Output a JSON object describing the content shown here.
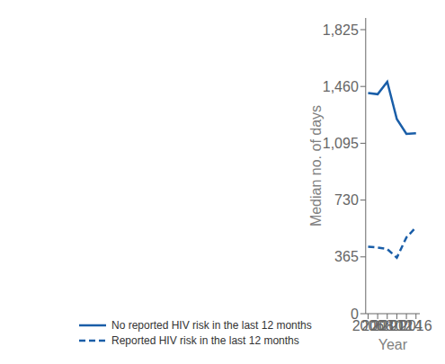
{
  "chart_data": {
    "type": "line",
    "x": [
      2006,
      2008,
      2010,
      2012,
      2014,
      2016
    ],
    "series": [
      {
        "name": "No reported HIV risk in the last 12 months",
        "color": "#1A5EA8",
        "values": [
          1418,
          1410,
          1490,
          1250,
          1155,
          1160
        ],
        "line_style": "solid"
      },
      {
        "name": "Reported HIV risk in the last 12 months",
        "color": "#1A5EA8",
        "values": [
          430,
          425,
          415,
          360,
          490,
          555
        ],
        "line_style": "dashed"
      }
    ],
    "xlabel": "Year",
    "ylabel": "Median no. of days",
    "xlim": [
      2005.5,
      2016.8
    ],
    "xticks": [
      2006,
      2008,
      2010,
      2012,
      2014,
      2016
    ],
    "ylim": [
      0,
      1900
    ],
    "yticks": [
      0,
      365,
      730,
      {
        "value": 1095,
        "label": "1,095"
      },
      {
        "value": 1460,
        "label": "1,460"
      },
      {
        "value": 1825,
        "label": "1,825"
      }
    ],
    "legend": "lower left",
    "grid": false
  }
}
